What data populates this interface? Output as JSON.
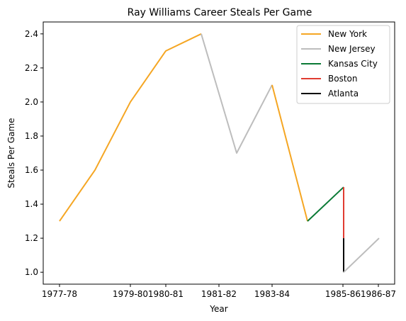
{
  "chart_data": {
    "type": "line",
    "title": "Ray Williams  Career Steals Per Game",
    "xlabel": "Year",
    "ylabel": "Steals Per Game",
    "x_tick_labels": [
      "1977-78",
      "1979-80",
      "1980-81",
      "1981-82",
      "1983-84",
      "1985-86",
      "1986-87"
    ],
    "y_ticks": [
      1.0,
      1.2,
      1.4,
      1.6,
      1.8,
      2.0,
      2.2,
      2.4
    ],
    "ylim": [
      0.93,
      2.47
    ],
    "legend_position": "top-right",
    "grid": false,
    "series": [
      {
        "name": "New York",
        "color": "#f5a623",
        "points": [
          {
            "x": "1977-78",
            "y": 1.3
          },
          {
            "x": "1978-79",
            "y": 1.6
          },
          {
            "x": "1979-80",
            "y": 2.0
          },
          {
            "x": "1980-81",
            "y": 2.3
          },
          {
            "x": "1981-82",
            "y": 2.4
          }
        ]
      },
      {
        "name": "New Jersey",
        "color": "#bdbdbd",
        "points": [
          {
            "x": "1981-82",
            "y": 2.4
          },
          {
            "x": "1982-83",
            "y": 1.7
          },
          {
            "x": "1983-84",
            "y": 2.1
          }
        ]
      },
      {
        "name": "New York",
        "color": "#f5a623",
        "points": [
          {
            "x": "1983-84",
            "y": 2.1
          },
          {
            "x": "1984-85",
            "y": 1.3
          }
        ]
      },
      {
        "name": "Kansas City",
        "color": "#0a7a36",
        "points": [
          {
            "x": "1984-85",
            "y": 1.3
          },
          {
            "x": "1985-86",
            "y": 1.5
          }
        ]
      },
      {
        "name": "Boston",
        "color": "#e03c31",
        "points": [
          {
            "x": "1985-86",
            "y": 1.5
          },
          {
            "x": "1985-86",
            "y": 1.2
          }
        ]
      },
      {
        "name": "Atlanta",
        "color": "#000000",
        "points": [
          {
            "x": "1985-86",
            "y": 1.2
          },
          {
            "x": "1985-86",
            "y": 1.0
          }
        ]
      },
      {
        "name": "New Jersey",
        "color": "#bdbdbd",
        "points": [
          {
            "x": "1985-86",
            "y": 1.0
          },
          {
            "x": "1986-87",
            "y": 1.2
          }
        ]
      }
    ],
    "legend": [
      {
        "name": "New York",
        "color": "#f5a623"
      },
      {
        "name": "New Jersey",
        "color": "#bdbdbd"
      },
      {
        "name": "Kansas City",
        "color": "#0a7a36"
      },
      {
        "name": "Boston",
        "color": "#e03c31"
      },
      {
        "name": "Atlanta",
        "color": "#000000"
      }
    ]
  }
}
